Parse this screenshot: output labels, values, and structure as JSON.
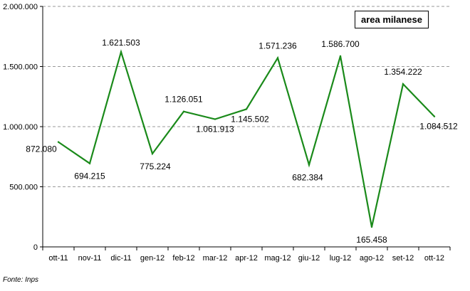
{
  "chart_data": {
    "type": "line",
    "categories": [
      "ott-11",
      "nov-11",
      "dic-11",
      "gen-12",
      "feb-12",
      "mar-12",
      "apr-12",
      "mag-12",
      "giu-12",
      "lug-12",
      "ago-12",
      "set-12",
      "ott-12"
    ],
    "series": [
      {
        "name": "area milanese",
        "color": "#1a8a1a",
        "values": [
          872080,
          694215,
          1621503,
          775224,
          1126051,
          1061913,
          1145502,
          1571236,
          682384,
          1586700,
          165458,
          1354222,
          1084512
        ],
        "labels": [
          "872.080",
          "694.215",
          "1.621.503",
          "775.224",
          "1.126.051",
          "1.061.913",
          "1.145.502",
          "1.571.236",
          "682.384",
          "1.586.700",
          "165.458",
          "1.354.222",
          "1.084.512"
        ]
      }
    ],
    "ylim": [
      0,
      2000000
    ],
    "yticks": [
      0,
      500000,
      1000000,
      1500000,
      2000000
    ],
    "ytick_labels": [
      "0",
      "500.000",
      "1.000.000",
      "1.500.000",
      "2.000.000"
    ],
    "grid": true,
    "legend": "top-right"
  },
  "footer": {
    "source": "Fonte: Inps"
  }
}
